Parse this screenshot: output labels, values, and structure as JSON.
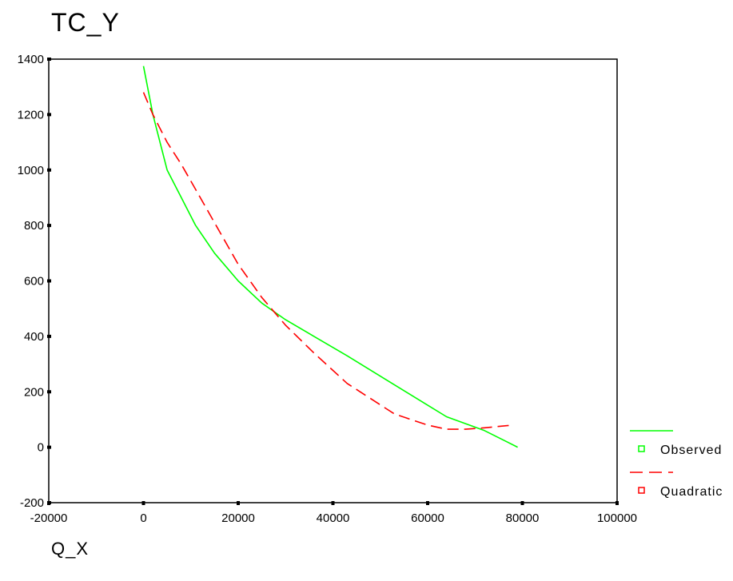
{
  "chart_data": {
    "type": "line",
    "title": "TC_Y",
    "xlabel": "Q_X",
    "ylabel": "",
    "xlim": [
      -20000,
      100000
    ],
    "ylim": [
      -200,
      1400
    ],
    "xticks": [
      -20000,
      0,
      20000,
      40000,
      60000,
      80000,
      100000
    ],
    "yticks": [
      -200,
      0,
      200,
      400,
      600,
      800,
      1000,
      1200,
      1400
    ],
    "grid": false,
    "legend_position": "bottom-right",
    "series": [
      {
        "name": "Observed",
        "color": "#00ff00",
        "line_style": "solid",
        "x": [
          0,
          2000,
          5000,
          8000,
          11000,
          15000,
          20000,
          25000,
          30000,
          36000,
          43000,
          53000,
          64000,
          72000,
          79000
        ],
        "y": [
          1375,
          1200,
          1000,
          900,
          800,
          700,
          600,
          520,
          460,
          400,
          330,
          225,
          110,
          60,
          0
        ]
      },
      {
        "name": "Quadratic",
        "color": "#ff0000",
        "line_style": "dashed",
        "x": [
          0,
          2000,
          5000,
          8000,
          11000,
          15000,
          20000,
          25000,
          30000,
          36000,
          43000,
          53000,
          60000,
          64000,
          68000,
          72000,
          75000,
          78000
        ],
        "y": [
          1280,
          1200,
          1100,
          1020,
          930,
          810,
          660,
          540,
          440,
          340,
          230,
          120,
          80,
          65,
          65,
          70,
          75,
          80
        ]
      }
    ]
  }
}
